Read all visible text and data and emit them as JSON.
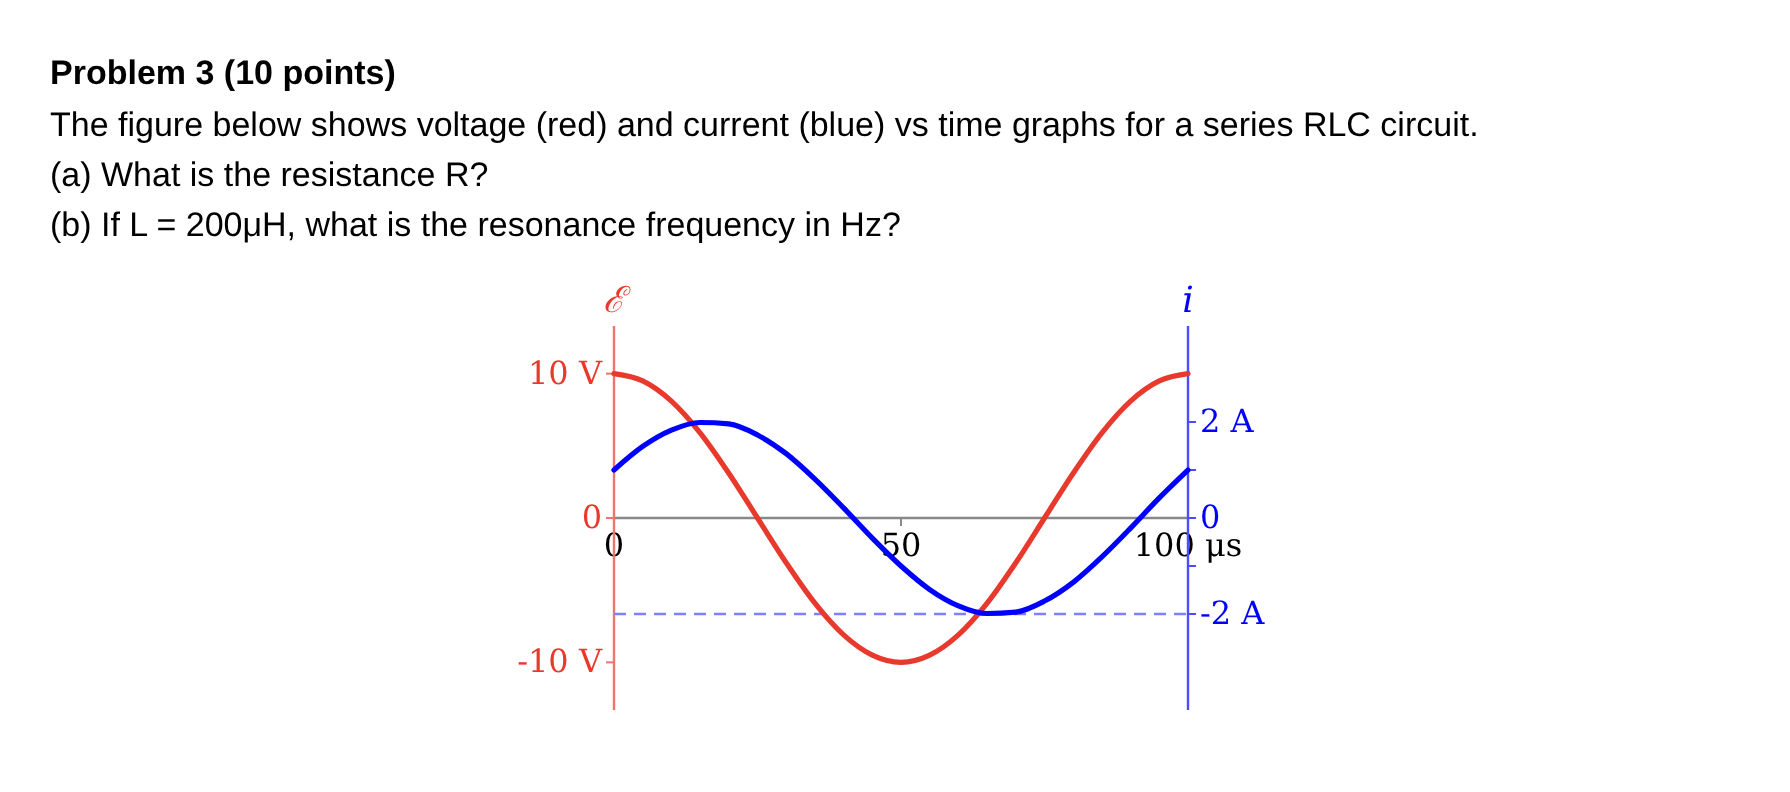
{
  "chart_data": {
    "type": "line",
    "title": "Problem 3 (10 points)",
    "annotations": [
      "The figure below shows voltage (red) and current (blue) vs time graphs for a series RLC circuit.",
      "(a) What is the resistance R?",
      "(b) If L = 200μH, what is the resonance frequency in Hz?"
    ],
    "ylabel": "ℰ",
    "y2label": "i",
    "x": [
      0,
      5,
      10,
      15,
      20,
      25,
      30,
      35,
      40,
      45,
      50,
      55,
      60,
      65,
      70,
      75,
      80,
      85,
      90,
      95,
      100
    ],
    "series": [
      {
        "color": "#e8392d",
        "values": [
          10,
          9.5,
          8.1,
          5.9,
          3.1,
          0,
          -3.1,
          -5.9,
          -8.1,
          -9.5,
          -10,
          -9.5,
          -8.1,
          -5.9,
          -3.1,
          0,
          3.1,
          5.9,
          8.1,
          9.5,
          10
        ]
      },
      {
        "color": "#0000ff",
        "axis": "y2",
        "values": [
          1.0,
          1.49,
          1.83,
          1.99,
          1.96,
          1.73,
          1.34,
          0.81,
          0.21,
          -0.42,
          -1.0,
          -1.49,
          -1.83,
          -1.99,
          -1.96,
          -1.73,
          -1.34,
          -0.81,
          -0.21,
          0.42,
          1.0
        ]
      }
    ],
    "xlim": [
      0,
      100
    ],
    "xticks": [
      0,
      50,
      {
        "value": 100,
        "label": "100 μs"
      }
    ],
    "ylim": [
      -13.3,
      13.3
    ],
    "yticks": [
      {
        "value": -10,
        "label": "-10 V"
      },
      0,
      {
        "value": 10,
        "label": "10 V"
      }
    ],
    "y2lim": [
      -4,
      4
    ],
    "y2ticks": [
      {
        "value": -2,
        "label": "-2 A"
      },
      {
        "value": -1,
        "label": null
      },
      0,
      {
        "value": 1,
        "label": null
      },
      {
        "value": 2,
        "label": "2 A"
      }
    ],
    "ref_lines": [
      {
        "axis": "y2",
        "value": -2,
        "color": "#8080ff",
        "line_style": "dashed"
      }
    ],
    "grid": false,
    "line_style": "solid"
  }
}
